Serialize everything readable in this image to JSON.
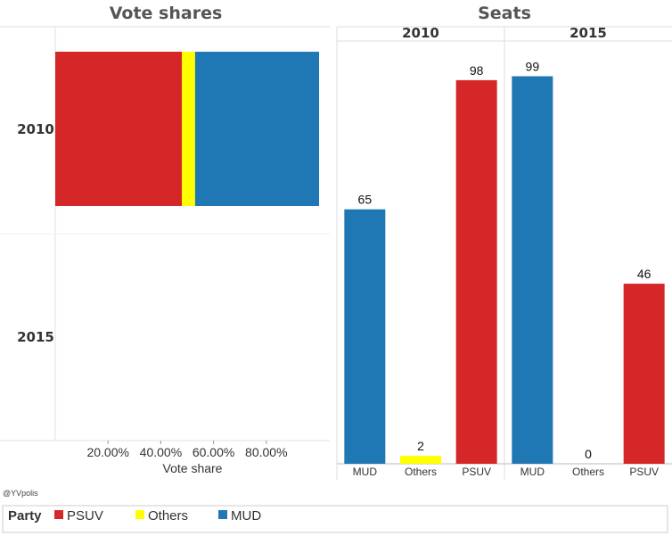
{
  "colors": {
    "PSUV": "#d62728",
    "Others": "#ffff00",
    "MUD": "#1f77b4"
  },
  "credit": "@YVpolis",
  "legend": {
    "title": "Party",
    "items": [
      {
        "name": "PSUV",
        "color": "#d62728"
      },
      {
        "name": "Others",
        "color": "#ffff00"
      },
      {
        "name": "MUD",
        "color": "#1f77b4"
      }
    ]
  },
  "chart_data": [
    {
      "type": "bar",
      "orientation": "horizontal-stacked",
      "title": "Vote shares",
      "xlabel": "Vote share",
      "ylabel": "",
      "xlim": [
        0,
        1
      ],
      "x_ticks": [
        "20.00%",
        "40.00%",
        "60.00%",
        "80.00%"
      ],
      "categories": [
        "2010",
        "2015"
      ],
      "series": [
        {
          "name": "PSUV",
          "values": [
            0.48,
            null
          ]
        },
        {
          "name": "Others",
          "values": [
            0.05,
            null
          ]
        },
        {
          "name": "MUD",
          "values": [
            0.47,
            null
          ]
        }
      ]
    },
    {
      "type": "bar",
      "title": "Seats",
      "panels": [
        {
          "label": "2010",
          "categories": [
            "MUD",
            "Others",
            "PSUV"
          ],
          "values": [
            65,
            2,
            98
          ]
        },
        {
          "label": "2015",
          "categories": [
            "MUD",
            "Others",
            "PSUV"
          ],
          "values": [
            99,
            0,
            46
          ]
        }
      ],
      "ylim": [
        0,
        108
      ],
      "data_labels": true
    }
  ]
}
